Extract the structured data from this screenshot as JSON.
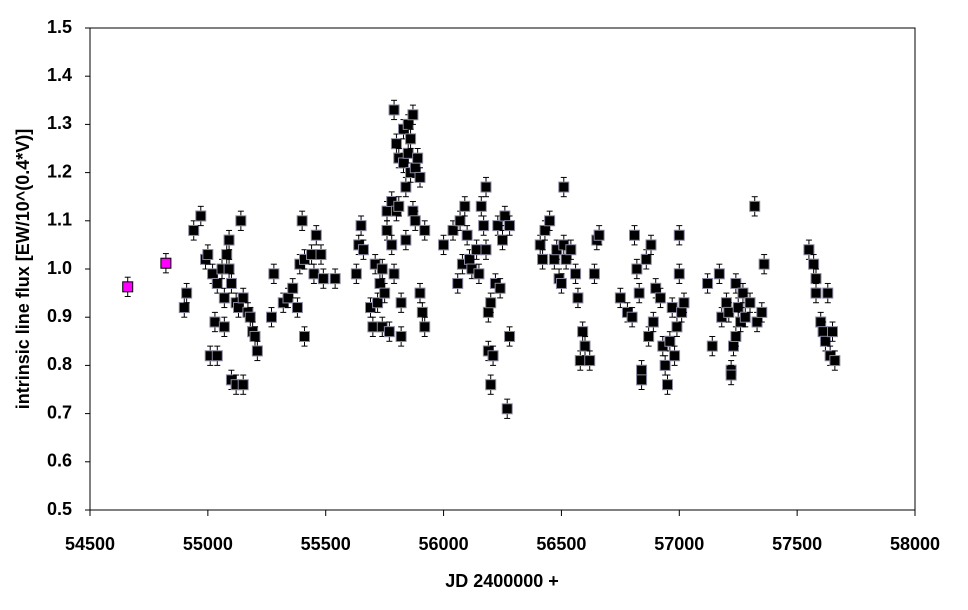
{
  "chart_data": {
    "type": "scatter",
    "x_label": "JD 2400000 +",
    "y_label": "intrinsic line flux [EW/10^(0.4*V)]",
    "xlim": [
      54500,
      58000
    ],
    "xticks": [
      54500,
      55000,
      55500,
      56000,
      56500,
      57000,
      57500,
      58000
    ],
    "ylim": [
      0.5,
      1.5
    ],
    "yticks": [
      0.5,
      0.6,
      0.7,
      0.8,
      0.9,
      {
        "value": 1.0,
        "label": "1.0"
      },
      1.1,
      1.2,
      1.3,
      1.4,
      1.5
    ],
    "series": [
      {
        "color": "#ff00ff",
        "error": 0.02,
        "x": [
          54660,
          54822
        ],
        "values": [
          0.963,
          1.012
        ]
      },
      {
        "color": "#000000",
        "error": 0.02,
        "x": [
          54900,
          54910,
          54940,
          54970,
          54990,
          55000,
          55010,
          55020,
          55030,
          55040,
          55040,
          55060,
          55070,
          55070,
          55080,
          55090,
          55090,
          55100,
          55100,
          55120,
          55120,
          55130,
          55140,
          55150,
          55150,
          55170,
          55180,
          55190,
          55200,
          55210,
          55270,
          55280,
          55320,
          55340,
          55360,
          55380,
          55390,
          55400,
          55410,
          55410,
          55440,
          55450,
          55460,
          55480,
          55490,
          55540,
          55630,
          55640,
          55650,
          55660,
          55690,
          55700,
          55710,
          55720,
          55730,
          55740,
          55740,
          55750,
          55760,
          55760,
          55770,
          55780,
          55780,
          55790,
          55790,
          55800,
          55800,
          55810,
          55810,
          55820,
          55820,
          55830,
          55830,
          55840,
          55840,
          55850,
          55850,
          55860,
          55860,
          55870,
          55870,
          55880,
          55880,
          55890,
          55900,
          55900,
          55910,
          55920,
          55920,
          56000,
          56040,
          56060,
          56070,
          56080,
          56090,
          56100,
          56110,
          56120,
          56140,
          56150,
          56160,
          56170,
          56180,
          56180,
          56190,
          56190,
          56200,
          56200,
          56210,
          56220,
          56230,
          56240,
          56250,
          56260,
          56270,
          56280,
          56280,
          56410,
          56420,
          56430,
          56450,
          56470,
          56480,
          56490,
          56500,
          56510,
          56510,
          56520,
          56540,
          56560,
          56570,
          56580,
          56590,
          56600,
          56620,
          56640,
          56650,
          56660,
          56750,
          56780,
          56800,
          56810,
          56820,
          56830,
          56840,
          56840,
          56860,
          56870,
          56880,
          56890,
          56900,
          56920,
          56930,
          56940,
          56950,
          56960,
          56970,
          56980,
          56990,
          57000,
          57000,
          57010,
          57020,
          57120,
          57140,
          57170,
          57180,
          57200,
          57210,
          57220,
          57220,
          57230,
          57240,
          57240,
          57250,
          57260,
          57270,
          57280,
          57300,
          57320,
          57330,
          57350,
          57360,
          57550,
          57570,
          57580,
          57580,
          57600,
          57610,
          57620,
          57630,
          57640,
          57650,
          57660
        ],
        "values": [
          0.92,
          0.95,
          1.08,
          1.11,
          1.02,
          1.03,
          0.82,
          0.99,
          0.89,
          0.82,
          0.97,
          1.0,
          0.94,
          0.88,
          1.03,
          1.06,
          1.0,
          0.97,
          0.77,
          0.76,
          0.93,
          0.92,
          1.1,
          0.94,
          0.76,
          0.91,
          0.9,
          0.87,
          0.86,
          0.83,
          0.9,
          0.99,
          0.93,
          0.94,
          0.96,
          0.92,
          1.01,
          1.1,
          1.02,
          0.86,
          1.03,
          0.99,
          1.07,
          1.03,
          0.98,
          0.98,
          0.99,
          1.05,
          1.09,
          1.04,
          0.92,
          0.88,
          1.01,
          0.93,
          0.97,
          0.88,
          1.0,
          0.95,
          1.08,
          1.12,
          0.87,
          1.14,
          1.05,
          1.33,
          0.99,
          1.26,
          1.12,
          1.23,
          1.13,
          0.93,
          0.86,
          1.29,
          1.22,
          1.06,
          1.17,
          1.3,
          1.24,
          1.27,
          1.2,
          1.32,
          1.12,
          1.21,
          1.1,
          1.23,
          0.95,
          1.19,
          0.91,
          0.88,
          1.08,
          1.05,
          1.08,
          0.97,
          1.1,
          1.01,
          1.13,
          1.07,
          1.02,
          1.0,
          1.04,
          0.99,
          1.13,
          1.09,
          1.04,
          1.17,
          0.83,
          0.91,
          0.76,
          0.93,
          0.82,
          0.97,
          1.09,
          0.96,
          1.06,
          1.11,
          0.71,
          1.09,
          0.86,
          1.05,
          1.02,
          1.08,
          1.1,
          1.02,
          1.04,
          0.98,
          0.97,
          1.17,
          1.05,
          1.02,
          1.04,
          0.99,
          0.94,
          0.81,
          0.87,
          0.84,
          0.81,
          0.99,
          1.06,
          1.07,
          0.94,
          0.91,
          0.9,
          1.07,
          1.0,
          0.95,
          0.79,
          0.77,
          1.02,
          0.86,
          1.05,
          0.89,
          0.96,
          0.94,
          0.84,
          0.8,
          0.76,
          0.85,
          0.92,
          0.82,
          0.88,
          0.99,
          1.07,
          0.91,
          0.93,
          0.97,
          0.84,
          0.99,
          0.9,
          0.93,
          0.91,
          0.79,
          0.78,
          0.84,
          0.86,
          0.97,
          0.92,
          0.89,
          0.95,
          0.9,
          0.93,
          1.13,
          0.89,
          0.91,
          1.01,
          1.04,
          1.01,
          0.98,
          0.95,
          0.89,
          0.87,
          0.85,
          0.95,
          0.82,
          0.87,
          0.81
        ]
      }
    ]
  }
}
